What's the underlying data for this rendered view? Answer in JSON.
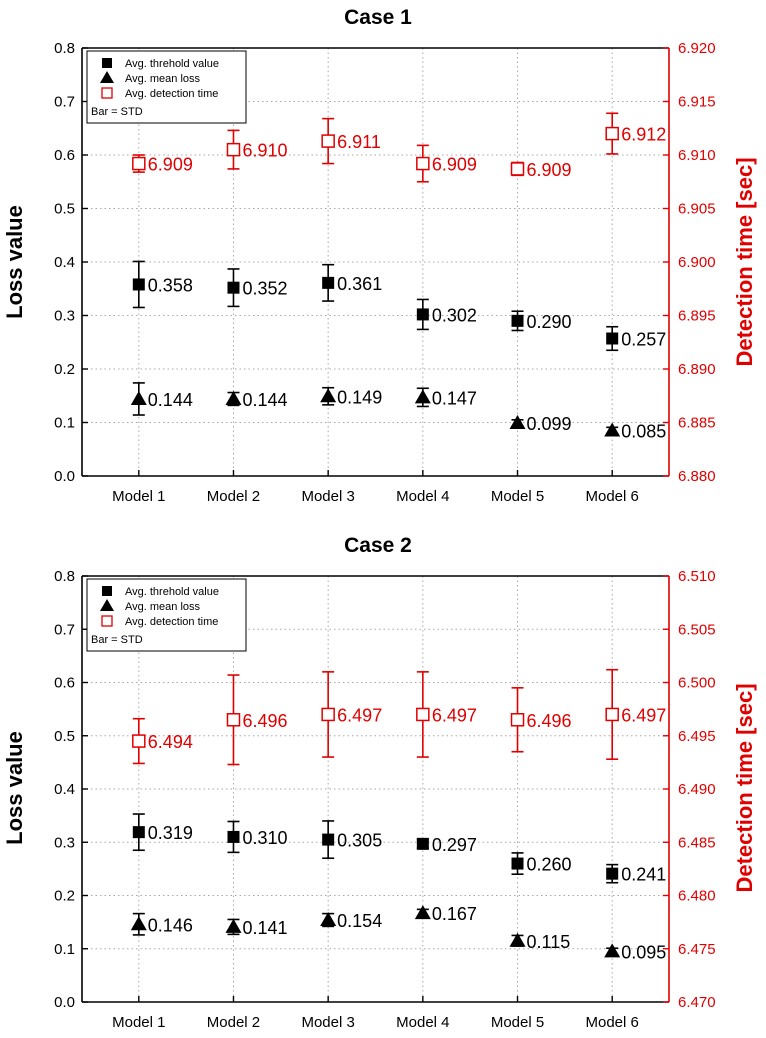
{
  "chart_data": [
    {
      "type": "scatter",
      "title": "Case 1",
      "xlabel": "",
      "ylabel": "Loss value",
      "y2label": "Detection time [sec]",
      "categories": [
        "Model 1",
        "Model 2",
        "Model 3",
        "Model 4",
        "Model 5",
        "Model 6"
      ],
      "ylim": [
        0.0,
        0.8
      ],
      "yticks": [
        "0.0",
        "0.1",
        "0.2",
        "0.3",
        "0.4",
        "0.5",
        "0.6",
        "0.7",
        "0.8"
      ],
      "y2lim": [
        6.88,
        6.92
      ],
      "y2ticks": [
        "6.880",
        "6.885",
        "6.890",
        "6.895",
        "6.900",
        "6.905",
        "6.910",
        "6.915",
        "6.920"
      ],
      "grid": true,
      "legend_position": "top-left",
      "legend_note": "Bar = STD",
      "colors": {
        "primary": "#000000",
        "secondary": "#e00000"
      },
      "series": [
        {
          "name": "Avg. threhold value",
          "axis": "left",
          "marker": "filled-square",
          "values": [
            0.358,
            0.352,
            0.361,
            0.302,
            0.29,
            0.257
          ],
          "labels": [
            "0.358",
            "0.352",
            "0.361",
            "0.302",
            "0.290",
            "0.257"
          ],
          "std": [
            0.043,
            0.035,
            0.034,
            0.028,
            0.018,
            0.022
          ]
        },
        {
          "name": "Avg. mean loss",
          "axis": "left",
          "marker": "filled-triangle",
          "values": [
            0.144,
            0.144,
            0.149,
            0.147,
            0.099,
            0.085
          ],
          "labels": [
            "0.144",
            "0.144",
            "0.149",
            "0.147",
            "0.099",
            "0.085"
          ],
          "std": [
            0.03,
            0.012,
            0.016,
            0.017,
            0.006,
            0.006
          ]
        },
        {
          "name": "Avg. detection time",
          "axis": "right",
          "marker": "open-square",
          "values": [
            6.9092,
            6.9105,
            6.9113,
            6.9092,
            6.9087,
            6.912
          ],
          "labels": [
            "6.909",
            "6.910",
            "6.911",
            "6.909",
            "6.909",
            "6.912"
          ],
          "std": [
            0.0008,
            0.0018,
            0.0021,
            0.0017,
            0.0006,
            0.0019
          ]
        }
      ]
    },
    {
      "type": "scatter",
      "title": "Case 2",
      "xlabel": "",
      "ylabel": "Loss value",
      "y2label": "Detection time [sec]",
      "categories": [
        "Model 1",
        "Model 2",
        "Model 3",
        "Model 4",
        "Model 5",
        "Model 6"
      ],
      "ylim": [
        0.0,
        0.8
      ],
      "yticks": [
        "0.0",
        "0.1",
        "0.2",
        "0.3",
        "0.4",
        "0.5",
        "0.6",
        "0.7",
        "0.8"
      ],
      "y2lim": [
        6.47,
        6.51
      ],
      "y2ticks": [
        "6.470",
        "6.475",
        "6.480",
        "6.485",
        "6.490",
        "6.495",
        "6.500",
        "6.505",
        "6.510"
      ],
      "grid": true,
      "legend_position": "top-left",
      "legend_note": "Bar = STD",
      "colors": {
        "primary": "#000000",
        "secondary": "#e00000"
      },
      "series": [
        {
          "name": "Avg. threhold value",
          "axis": "left",
          "marker": "filled-square",
          "values": [
            0.319,
            0.31,
            0.305,
            0.297,
            0.26,
            0.241
          ],
          "labels": [
            "0.319",
            "0.310",
            "0.305",
            "0.297",
            "0.260",
            "0.241"
          ],
          "std": [
            0.034,
            0.029,
            0.035,
            0.008,
            0.02,
            0.017
          ]
        },
        {
          "name": "Avg. mean loss",
          "axis": "left",
          "marker": "filled-triangle",
          "values": [
            0.146,
            0.141,
            0.154,
            0.167,
            0.115,
            0.095
          ],
          "labels": [
            "0.146",
            "0.141",
            "0.154",
            "0.167",
            "0.115",
            "0.095"
          ],
          "std": [
            0.02,
            0.014,
            0.012,
            0.007,
            0.01,
            0.006
          ]
        },
        {
          "name": "Avg. detection time",
          "axis": "right",
          "marker": "open-square",
          "values": [
            6.4945,
            6.4965,
            6.497,
            6.497,
            6.4965,
            6.497
          ],
          "labels": [
            "6.494",
            "6.496",
            "6.497",
            "6.497",
            "6.496",
            "6.497"
          ],
          "std": [
            0.0021,
            0.0042,
            0.004,
            0.004,
            0.003,
            0.0042
          ]
        }
      ]
    }
  ]
}
